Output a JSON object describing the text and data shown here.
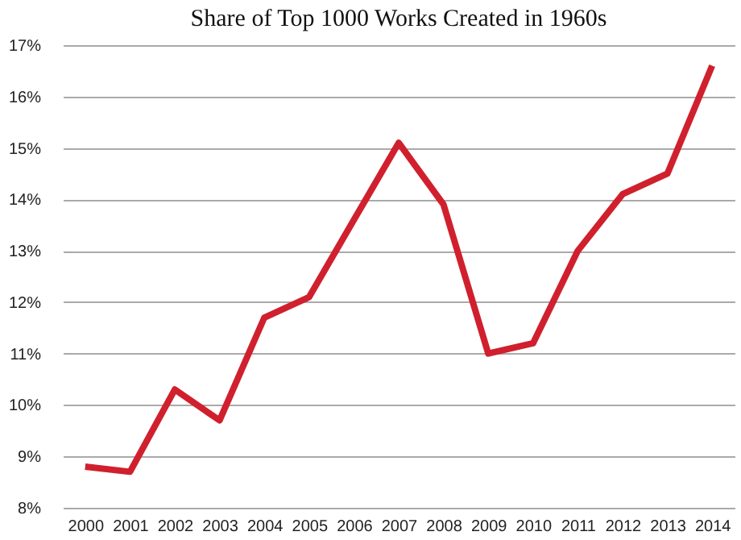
{
  "chart_data": {
    "type": "line",
    "title": "Share of Top 1000 Works Created in 1960s",
    "categories": [
      "2000",
      "2001",
      "2002",
      "2003",
      "2004",
      "2005",
      "2006",
      "2007",
      "2008",
      "2009",
      "2010",
      "2011",
      "2012",
      "2013",
      "2014"
    ],
    "series": [
      {
        "color": "#d0202e",
        "values": [
          8.8,
          8.7,
          10.3,
          9.7,
          11.7,
          12.1,
          13.6,
          15.1,
          13.9,
          11.0,
          11.2,
          13.0,
          14.1,
          14.5,
          16.6
        ]
      }
    ],
    "ylim": [
      8,
      17
    ],
    "yticks": [
      {
        "value": 8,
        "label": "8%"
      },
      {
        "value": 9,
        "label": "9%"
      },
      {
        "value": 10,
        "label": "10%"
      },
      {
        "value": 11,
        "label": "11%"
      },
      {
        "value": 12,
        "label": "12%"
      },
      {
        "value": 13,
        "label": "13%"
      },
      {
        "value": 14,
        "label": "14%"
      },
      {
        "value": 15,
        "label": "15%"
      },
      {
        "value": 16,
        "label": "16%"
      },
      {
        "value": 17,
        "label": "17%"
      }
    ],
    "grid": "y",
    "line_style": "solid",
    "marker": "none"
  }
}
